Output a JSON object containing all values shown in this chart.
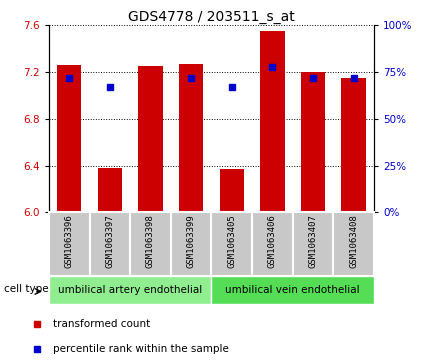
{
  "title": "GDS4778 / 203511_s_at",
  "samples": [
    "GSM1063396",
    "GSM1063397",
    "GSM1063398",
    "GSM1063399",
    "GSM1063405",
    "GSM1063406",
    "GSM1063407",
    "GSM1063408"
  ],
  "bar_values": [
    7.26,
    6.38,
    7.25,
    7.27,
    6.37,
    7.55,
    7.2,
    7.15
  ],
  "dot_values": [
    72,
    67,
    null,
    72,
    67,
    78,
    72,
    72
  ],
  "ylim_left": [
    6.0,
    7.6
  ],
  "yticks_left": [
    6.0,
    6.4,
    6.8,
    7.2,
    7.6
  ],
  "ylim_right": [
    0,
    100
  ],
  "yticks_right": [
    0,
    25,
    50,
    75,
    100
  ],
  "yticklabels_right": [
    "0%",
    "25%",
    "50%",
    "75%",
    "100%"
  ],
  "bar_color": "#cc0000",
  "dot_color": "#0000cc",
  "bar_width": 0.6,
  "cell_type_groups": [
    {
      "label": "umbilical artery endothelial",
      "start": 0,
      "end": 3,
      "color": "#66ff66"
    },
    {
      "label": "umbilical vein endothelial",
      "start": 4,
      "end": 7,
      "color": "#33ee33"
    }
  ],
  "cell_type_label": "cell type",
  "legend_bar_label": "transformed count",
  "legend_dot_label": "percentile rank within the sample",
  "title_fontsize": 10,
  "tick_fontsize": 7.5,
  "sample_fontsize": 6.5,
  "bg_plot": "#ffffff",
  "bg_xtick": "#c8c8c8",
  "cell_type_bg1": "#90ee90",
  "cell_type_bg2": "#55dd55"
}
